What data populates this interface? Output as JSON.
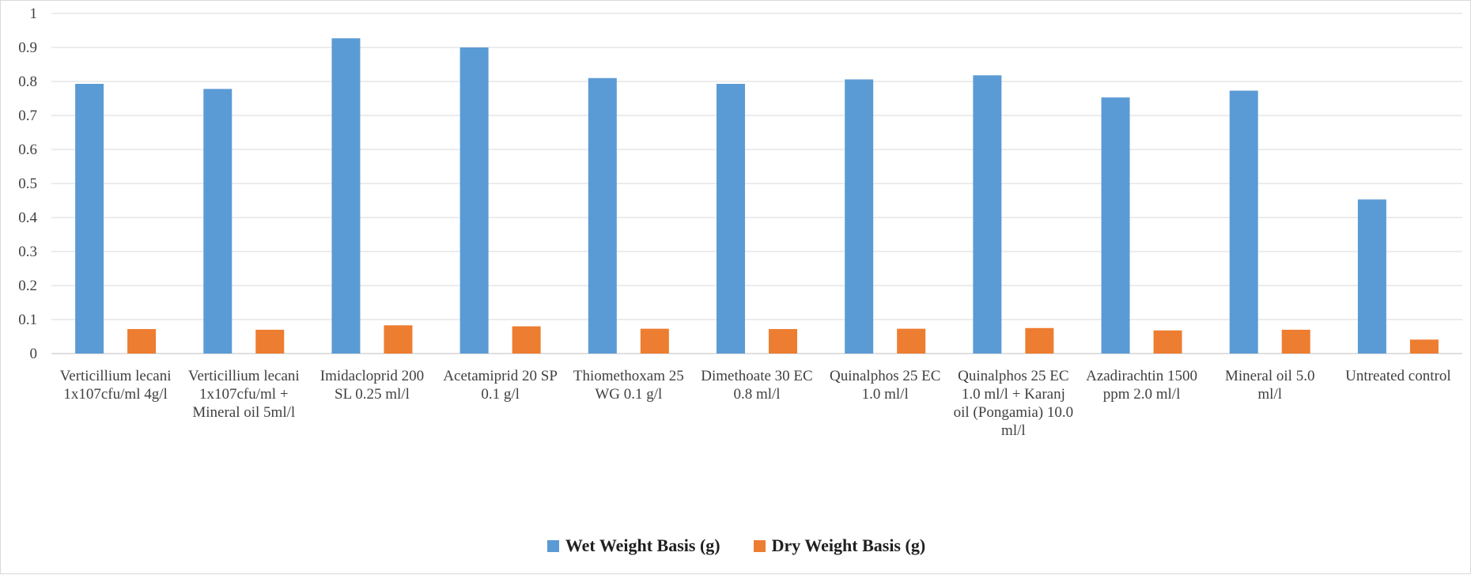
{
  "chart_data": {
    "type": "bar",
    "categories": [
      [
        "Verticillium lecani",
        "1x107cfu/ml  4g/l"
      ],
      [
        "Verticillium lecani",
        "1x107cfu/ml  +",
        "Mineral oil 5ml/l"
      ],
      [
        "Imidacloprid 200",
        "SL 0.25 ml/l"
      ],
      [
        "Acetamiprid  20 SP",
        "0.1 g/l"
      ],
      [
        "Thiomethoxam 25",
        "WG 0.1 g/l"
      ],
      [
        "Dimethoate  30 EC",
        "0.8 ml/l"
      ],
      [
        "Quinalphos 25 EC",
        "1.0 ml/l"
      ],
      [
        "Quinalphos 25 EC",
        "1.0 ml/l + Karanj",
        "oil (Pongamia) 10.0",
        "ml/l"
      ],
      [
        "Azadirachtin  1500",
        "ppm 2.0 ml/l"
      ],
      [
        "Mineral oil  5.0",
        "ml/l"
      ],
      [
        "Untreated control"
      ]
    ],
    "series": [
      {
        "name": "Wet Weight Basis (g)",
        "color": "#5b9bd5",
        "values": [
          0.793,
          0.778,
          0.927,
          0.9,
          0.81,
          0.793,
          0.806,
          0.818,
          0.753,
          0.773,
          0.453
        ]
      },
      {
        "name": "Dry Weight Basis (g)",
        "color": "#ed7d31",
        "values": [
          0.072,
          0.07,
          0.083,
          0.08,
          0.073,
          0.072,
          0.073,
          0.075,
          0.068,
          0.07,
          0.041
        ]
      }
    ],
    "ylim": [
      0,
      1
    ],
    "yticks": [
      "0",
      "0.1",
      "0.2",
      "0.3",
      "0.4",
      "0.5",
      "0.6",
      "0.7",
      "0.8",
      "0.9",
      "1"
    ],
    "grid": true,
    "legend_position": "bottom-center",
    "title": "",
    "xlabel": "",
    "ylabel": ""
  }
}
